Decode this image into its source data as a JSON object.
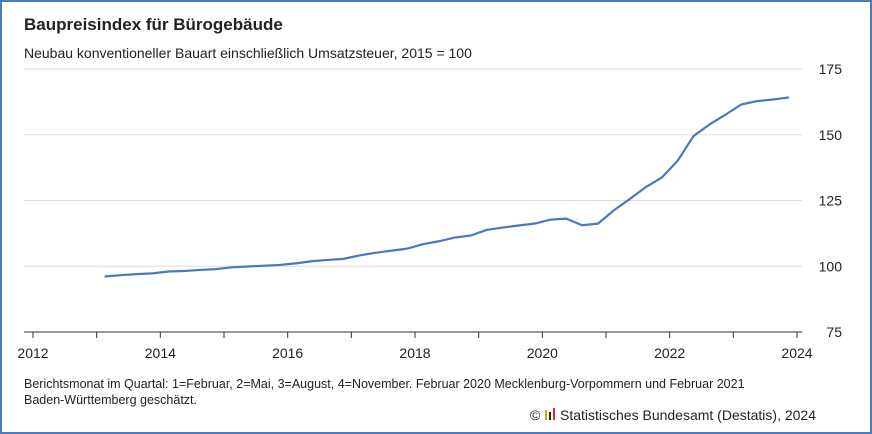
{
  "chart_data": {
    "type": "line",
    "title": "Baupreisindex für Bürogebäude",
    "subtitle": "Neubau konventioneller Bauart einschließlich Umsatzsteuer, 2015 = 100",
    "footnote": [
      "Berichtsmonat im Quartal: 1=Februar, 2=Mai, 3=August, 4=November. Februar 2020 Mecklenburg-Vorpommern und Februar 2021",
      "Baden-Württemberg geschätzt."
    ],
    "source": "Statistisches Bundesamt (Destatis), 2024",
    "x": [
      2013.125,
      2013.375,
      2013.625,
      2013.875,
      2014.125,
      2014.375,
      2014.625,
      2014.875,
      2015.125,
      2015.375,
      2015.625,
      2015.875,
      2016.125,
      2016.375,
      2016.625,
      2016.875,
      2017.125,
      2017.375,
      2017.625,
      2017.875,
      2018.125,
      2018.375,
      2018.625,
      2018.875,
      2019.125,
      2019.375,
      2019.625,
      2019.875,
      2020.125,
      2020.375,
      2020.625,
      2020.875,
      2021.125,
      2021.375,
      2021.625,
      2021.875,
      2022.125,
      2022.375,
      2022.625,
      2022.875,
      2023.125,
      2023.375,
      2023.625,
      2023.875
    ],
    "series": [
      {
        "color": "#4a78be",
        "values": [
          96.1,
          96.6,
          97.0,
          97.3,
          98.0,
          98.2,
          98.6,
          98.9,
          99.6,
          99.9,
          100.2,
          100.5,
          101.1,
          101.9,
          102.4,
          102.8,
          104.1,
          105.1,
          105.9,
          106.7,
          108.4,
          109.5,
          110.9,
          111.7,
          113.8,
          114.7,
          115.5,
          116.2,
          117.7,
          118.1,
          115.6,
          116.2,
          121.3,
          125.6,
          130.1,
          133.7,
          140.1,
          149.5,
          153.9,
          157.6,
          161.5,
          162.8,
          163.4,
          164.2
        ]
      }
    ],
    "xlim": [
      2012,
      2024
    ],
    "xticks": [
      2012,
      2014,
      2016,
      2018,
      2020,
      2022,
      2024
    ],
    "xminorticks": [
      2013,
      2015,
      2017,
      2019,
      2021,
      2023
    ],
    "ylim": [
      75,
      175
    ],
    "yticks": [
      75,
      100,
      125,
      150,
      175
    ],
    "grid": true
  }
}
